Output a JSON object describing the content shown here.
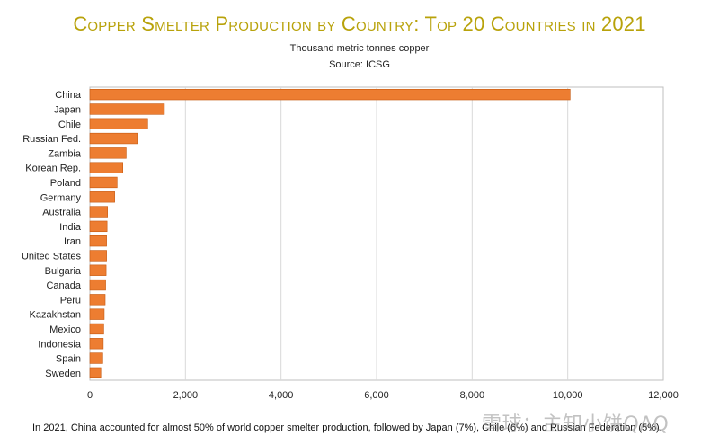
{
  "chart_data": {
    "type": "bar",
    "orientation": "horizontal",
    "title": "Copper Smelter Production by Country: Top 20 Countries in 2021",
    "subtitle": "Thousand metric tonnes copper",
    "source": "Source: ICSG",
    "categories": [
      "China",
      "Japan",
      "Chile",
      "Russian Fed.",
      "Zambia",
      "Korean Rep.",
      "Poland",
      "Germany",
      "Australia",
      "India",
      "Iran",
      "United States",
      "Bulgaria",
      "Canada",
      "Peru",
      "Kazakhstan",
      "Mexico",
      "Indonesia",
      "Spain",
      "Sweden"
    ],
    "values": [
      10050,
      1560,
      1210,
      990,
      760,
      690,
      570,
      520,
      370,
      360,
      350,
      350,
      340,
      330,
      320,
      300,
      290,
      280,
      270,
      230
    ],
    "xlim": [
      0,
      12000
    ],
    "xticks": [
      0,
      2000,
      4000,
      6000,
      8000,
      10000,
      12000
    ],
    "xtick_labels": [
      "0",
      "2,000",
      "4,000",
      "6,000",
      "8,000",
      "10,000",
      "12,000"
    ],
    "grid": "vertical",
    "legend": "none",
    "colors": {
      "bar": "#ed7d31",
      "bar_border": "#c55a11",
      "title": "#b8a20a",
      "grid": "#d9d9d9",
      "axis": "#bfbfbf"
    }
  },
  "footnote": "In 2021, China accounted for almost 50% of world copper smelter production, followed by Japan (7%), Chile (6%) and Russian Federation (5%).",
  "watermark": "雪球：主知小饼QAQ"
}
